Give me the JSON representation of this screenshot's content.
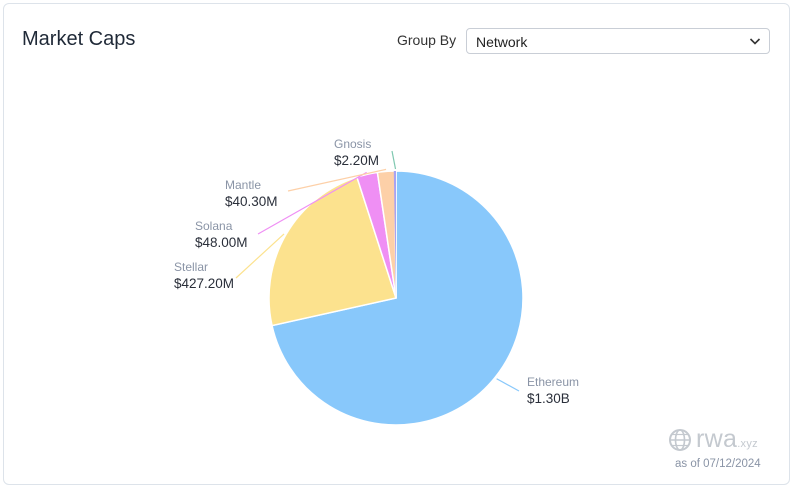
{
  "header": {
    "title": "Market Caps",
    "group_by_label": "Group By",
    "group_by_value": "Network"
  },
  "chart_data": {
    "type": "pie",
    "title": "Market Caps",
    "slices": [
      {
        "name": "Ethereum",
        "label": "$1.30B",
        "value": 1300.0,
        "color": "#88c8fb"
      },
      {
        "name": "Stellar",
        "label": "$427.20M",
        "value": 427.2,
        "color": "#fce28e"
      },
      {
        "name": "Solana",
        "label": "$48.00M",
        "value": 48.0,
        "color": "#ef8ff4"
      },
      {
        "name": "Mantle",
        "label": "$40.30M",
        "value": 40.3,
        "color": "#fdd0a8"
      },
      {
        "name": "Gnosis",
        "label": "$2.20M",
        "value": 2.2,
        "color": "#7fc8b0"
      }
    ]
  },
  "extra_slice_color": "#a8a3f2",
  "footer": {
    "brand": "rwa",
    "brand_suffix": ".xyz",
    "as_of": "as of 07/12/2024"
  },
  "icons": {
    "chevron": "chevron-down-icon",
    "brand": "globe-icon"
  }
}
